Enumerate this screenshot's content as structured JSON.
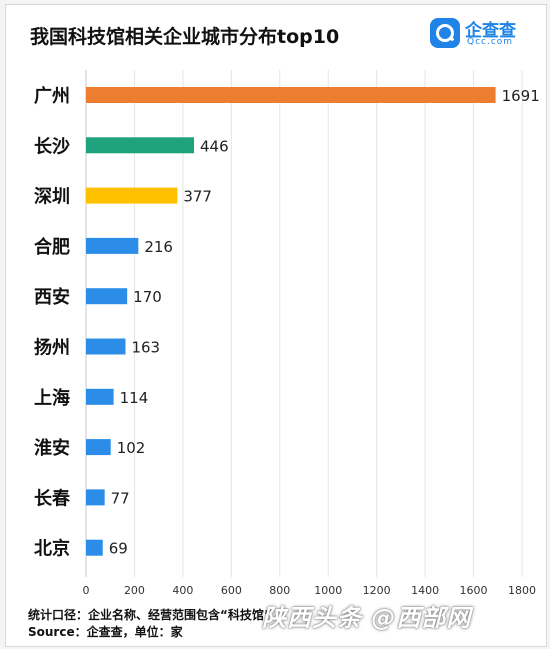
{
  "title": "我国科技馆相关企业城市分布top10",
  "logo": {
    "name": "企查查",
    "domain": "Qcc.com"
  },
  "chart_data": {
    "type": "bar",
    "orientation": "horizontal",
    "categories": [
      "广州",
      "长沙",
      "深圳",
      "合肥",
      "西安",
      "扬州",
      "上海",
      "淮安",
      "长春",
      "北京"
    ],
    "values": [
      1691,
      446,
      377,
      216,
      170,
      163,
      114,
      102,
      77,
      69
    ],
    "colors": [
      "#ed7d31",
      "#1fa37e",
      "#ffc000",
      "#2c8de8",
      "#2c8de8",
      "#2c8de8",
      "#2c8de8",
      "#2c8de8",
      "#2c8de8",
      "#2c8de8"
    ],
    "xlim": [
      0,
      1800
    ],
    "xticks": [
      0,
      200,
      400,
      600,
      800,
      1000,
      1200,
      1400,
      1600,
      1800
    ],
    "grid": true
  },
  "footer": {
    "caliber": "统计口径：企业名称、经营范围包含“科技馆”",
    "source": "Source：企查查，单位：家"
  },
  "watermark": "陕西头条 @西部网"
}
